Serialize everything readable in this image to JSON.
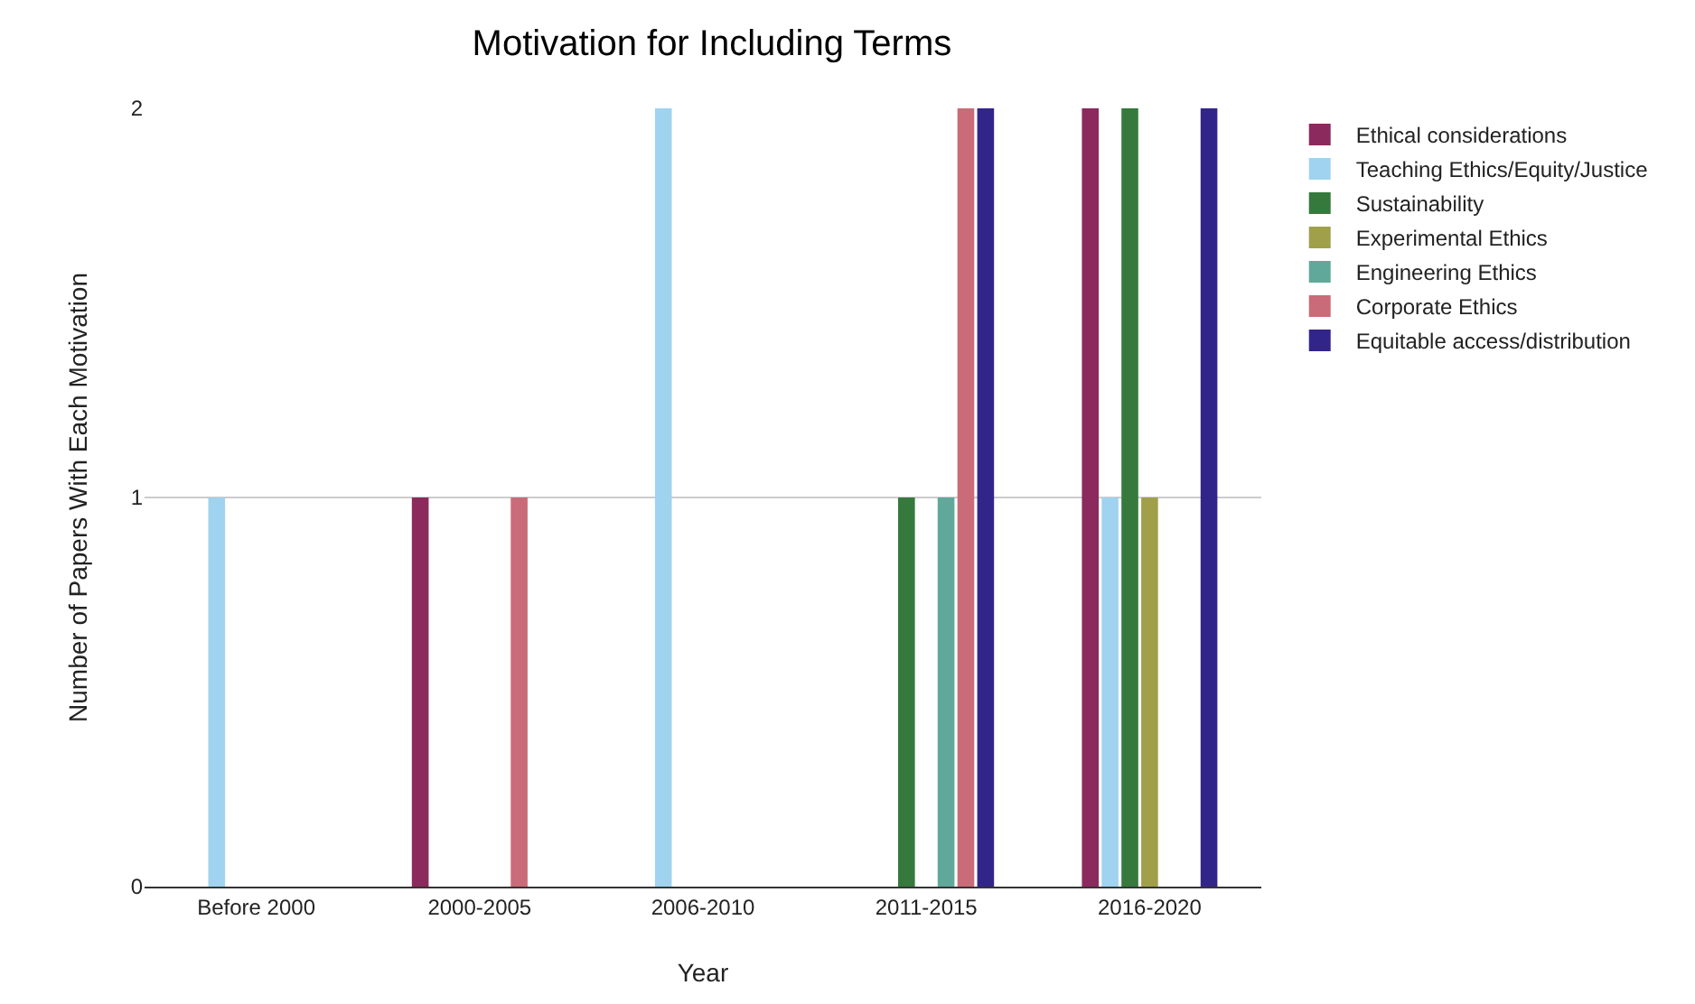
{
  "chart_data": {
    "type": "bar",
    "title": "Motivation for Including Terms",
    "xlabel": "Year",
    "ylabel": "Number of Papers With Each Motivation",
    "categories": [
      "Before 2000",
      "2000-2005",
      "2006-2010",
      "2011-2015",
      "2016-2020"
    ],
    "series": [
      {
        "name": "Ethical considerations",
        "color": "#8b2a5c",
        "values": [
          null,
          1,
          null,
          null,
          2
        ]
      },
      {
        "name": "Teaching Ethics/Equity/Justice",
        "color": "#9fd3f0",
        "values": [
          1,
          null,
          2,
          null,
          1
        ]
      },
      {
        "name": "Sustainability",
        "color": "#357a3c",
        "values": [
          null,
          null,
          null,
          1,
          2
        ]
      },
      {
        "name": "Experimental Ethics",
        "color": "#a0a04a",
        "values": [
          null,
          null,
          null,
          null,
          1
        ]
      },
      {
        "name": "Engineering Ethics",
        "color": "#5fa89a",
        "values": [
          null,
          null,
          null,
          1,
          null
        ]
      },
      {
        "name": "Corporate Ethics",
        "color": "#c96b78",
        "values": [
          null,
          1,
          null,
          2,
          null
        ]
      },
      {
        "name": "Equitable access/distribution",
        "color": "#32258a",
        "values": [
          null,
          null,
          null,
          2,
          2
        ]
      }
    ],
    "ylim": [
      0,
      2
    ],
    "yticks": [
      0,
      1,
      2
    ],
    "grid": "y",
    "legend": "top right"
  }
}
